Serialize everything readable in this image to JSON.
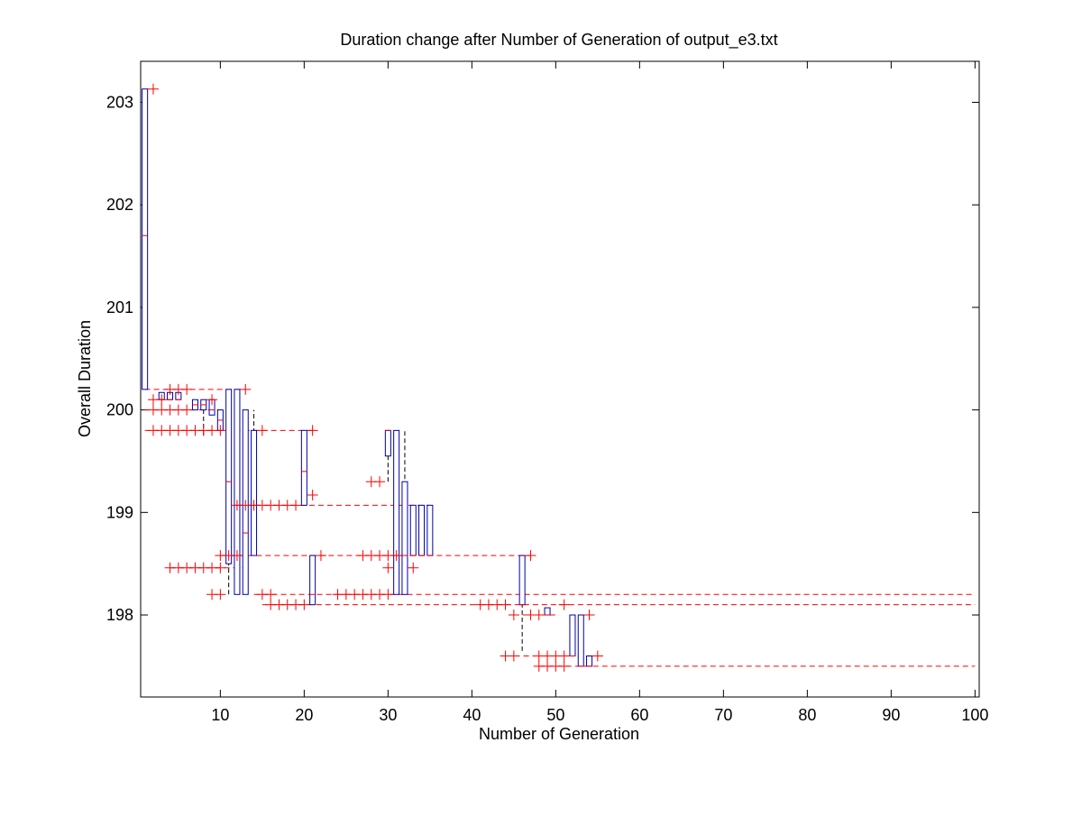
{
  "chart_data": {
    "type": "boxplot",
    "title": "Duration change after Number of Generation of output_e3.txt",
    "xlabel": "Number of Generation",
    "ylabel": "Overall Duration",
    "xlim": [
      0.5,
      100.5
    ],
    "ylim": [
      197.2,
      203.4
    ],
    "xticks": [
      10,
      20,
      30,
      40,
      50,
      60,
      70,
      80,
      90,
      100
    ],
    "yticks": [
      198,
      199,
      200,
      201,
      202,
      203
    ],
    "box_color": "#0000aa",
    "whisker_color": "#000000",
    "outlier_color": "#ff0000",
    "boxes": [
      {
        "x": 1,
        "low": 200.2,
        "q1": 200.2,
        "median": 201.7,
        "q3": 203.13,
        "high": 203.13
      },
      {
        "x": 3,
        "low": 200.1,
        "q1": 200.1,
        "median": 200.1,
        "q3": 200.17,
        "high": 200.17
      },
      {
        "x": 4,
        "low": 200.1,
        "q1": 200.1,
        "median": 200.1,
        "q3": 200.17,
        "high": 200.17
      },
      {
        "x": 5,
        "low": 200.1,
        "q1": 200.1,
        "median": 200.1,
        "q3": 200.17,
        "high": 200.17
      },
      {
        "x": 7,
        "low": 200.0,
        "q1": 200.0,
        "median": 200.05,
        "q3": 200.1,
        "high": 200.1
      },
      {
        "x": 8,
        "low": 199.75,
        "q1": 200.0,
        "median": 200.05,
        "q3": 200.1,
        "high": 200.1
      },
      {
        "x": 9,
        "low": 199.95,
        "q1": 199.95,
        "median": 200.0,
        "q3": 200.1,
        "high": 200.1
      },
      {
        "x": 10,
        "low": 199.8,
        "q1": 199.8,
        "median": 199.9,
        "q3": 200.0,
        "high": 200.0
      },
      {
        "x": 11,
        "low": 198.2,
        "q1": 198.5,
        "median": 199.3,
        "q3": 200.2,
        "high": 200.2
      },
      {
        "x": 12,
        "low": 198.2,
        "q1": 198.2,
        "median": 199.07,
        "q3": 200.2,
        "high": 200.2
      },
      {
        "x": 13,
        "low": 198.2,
        "q1": 198.2,
        "median": 198.8,
        "q3": 200.0,
        "high": 200.0
      },
      {
        "x": 14,
        "low": 198.58,
        "q1": 198.58,
        "median": 199.07,
        "q3": 199.8,
        "high": 200.0
      },
      {
        "x": 20,
        "low": 199.07,
        "q1": 199.07,
        "median": 199.4,
        "q3": 199.8,
        "high": 199.8
      },
      {
        "x": 21,
        "low": 198.1,
        "q1": 198.1,
        "median": 198.2,
        "q3": 198.58,
        "high": 198.58
      },
      {
        "x": 30,
        "low": 199.3,
        "q1": 199.55,
        "median": 199.8,
        "q3": 199.8,
        "high": 199.8
      },
      {
        "x": 31,
        "low": 198.2,
        "q1": 198.2,
        "median": 198.58,
        "q3": 199.8,
        "high": 199.8
      },
      {
        "x": 32,
        "low": 198.2,
        "q1": 198.2,
        "median": 198.58,
        "q3": 199.3,
        "high": 199.8
      },
      {
        "x": 33,
        "low": 198.58,
        "q1": 198.58,
        "median": 198.58,
        "q3": 199.07,
        "high": 199.07
      },
      {
        "x": 34,
        "low": 198.58,
        "q1": 198.58,
        "median": 198.58,
        "q3": 199.07,
        "high": 199.07
      },
      {
        "x": 35,
        "low": 198.58,
        "q1": 198.58,
        "median": 198.58,
        "q3": 199.07,
        "high": 199.07
      },
      {
        "x": 46,
        "low": 197.65,
        "q1": 198.1,
        "median": 198.1,
        "q3": 198.58,
        "high": 198.58
      },
      {
        "x": 49,
        "low": 198.0,
        "q1": 198.0,
        "median": 198.0,
        "q3": 198.07,
        "high": 198.07
      },
      {
        "x": 52,
        "low": 197.6,
        "q1": 197.6,
        "median": 197.6,
        "q3": 198.0,
        "high": 198.0
      },
      {
        "x": 53,
        "low": 197.5,
        "q1": 197.5,
        "median": 197.5,
        "q3": 198.0,
        "high": 198.0
      },
      {
        "x": 54,
        "low": 197.5,
        "q1": 197.5,
        "median": 197.5,
        "q3": 197.6,
        "high": 197.6
      }
    ],
    "outliers": {
      "x": [
        2,
        4,
        5,
        6,
        13,
        2,
        3,
        9,
        2,
        3,
        4,
        5,
        6,
        2,
        3,
        4,
        5,
        6,
        7,
        8,
        9,
        10,
        15,
        21,
        28,
        29,
        21,
        12,
        13,
        14,
        15,
        16,
        17,
        18,
        19,
        10,
        11,
        12,
        22,
        27,
        28,
        29,
        30,
        31,
        4,
        5,
        6,
        7,
        8,
        9,
        10,
        30,
        33,
        9,
        10,
        15,
        16,
        24,
        25,
        26,
        27,
        28,
        29,
        30,
        16,
        17,
        18,
        19,
        20,
        41,
        42,
        43,
        44,
        45,
        47,
        48,
        51,
        54,
        47,
        44,
        45,
        48,
        49,
        50,
        51,
        55,
        48,
        49,
        50,
        51
      ],
      "y": [
        203.13,
        200.2,
        200.2,
        200.2,
        200.2,
        200.1,
        200.1,
        200.1,
        200.0,
        200.0,
        200.0,
        200.0,
        200.0,
        199.8,
        199.8,
        199.8,
        199.8,
        199.8,
        199.8,
        199.8,
        199.8,
        199.8,
        199.8,
        199.8,
        199.3,
        199.3,
        199.17,
        199.07,
        199.07,
        199.07,
        199.07,
        199.07,
        199.07,
        199.07,
        199.07,
        198.58,
        198.58,
        198.58,
        198.58,
        198.58,
        198.58,
        198.58,
        198.58,
        198.58,
        198.46,
        198.46,
        198.46,
        198.46,
        198.46,
        198.46,
        198.46,
        198.46,
        198.46,
        198.2,
        198.2,
        198.2,
        198.2,
        198.2,
        198.2,
        198.2,
        198.2,
        198.2,
        198.2,
        198.2,
        198.1,
        198.1,
        198.1,
        198.1,
        198.1,
        198.1,
        198.1,
        198.1,
        198.1,
        198.0,
        198.0,
        198.0,
        198.1,
        198.0,
        198.58,
        197.6,
        197.6,
        197.6,
        197.6,
        197.6,
        197.6,
        197.6,
        197.5,
        197.5,
        197.5,
        197.5
      ]
    },
    "levels": [
      {
        "x": [
          1,
          13
        ],
        "y": 200.2
      },
      {
        "x": [
          1,
          10
        ],
        "y": 200.0
      },
      {
        "x": [
          1,
          21
        ],
        "y": 199.8
      },
      {
        "x": [
          12,
          35
        ],
        "y": 199.07
      },
      {
        "x": [
          10,
          47
        ],
        "y": 198.58
      },
      {
        "x": [
          4,
          13
        ],
        "y": 198.46
      },
      {
        "x": [
          14,
          100
        ],
        "y": 198.2
      },
      {
        "x": [
          15,
          100
        ],
        "y": 198.1
      },
      {
        "x": [
          45,
          50
        ],
        "y": 198.0
      },
      {
        "x": [
          44,
          55
        ],
        "y": 197.6
      },
      {
        "x": [
          48,
          100
        ],
        "y": 197.5
      }
    ]
  }
}
